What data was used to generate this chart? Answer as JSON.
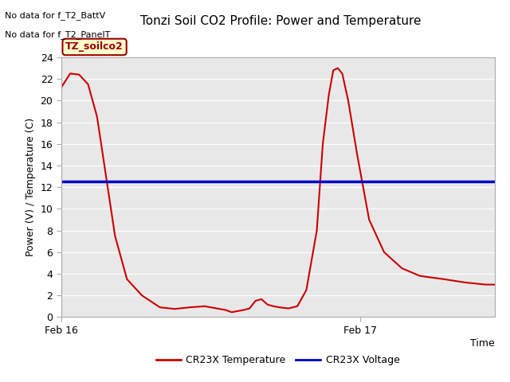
{
  "title": "Tonzi Soil CO2 Profile: Power and Temperature",
  "ylabel": "Power (V) / Temperature (C)",
  "xlabel": "Time",
  "ylim": [
    0,
    24
  ],
  "no_data_lines": [
    "No data for f_T2_BattV",
    "No data for f_T2_PanelT"
  ],
  "legend_box_label": "TZ_soilco2",
  "legend_box_facecolor": "#ffffcc",
  "legend_box_edgecolor": "#990000",
  "voltage_value": 12.5,
  "voltage_color": "#0000cc",
  "temp_color": "#cc0000",
  "background_color": "#e8e8e8",
  "legend_entries": [
    "CR23X Temperature",
    "CR23X Voltage"
  ],
  "legend_colors": [
    "#cc0000",
    "#0000cc"
  ],
  "xlim": [
    0.0,
    1.45
  ],
  "x_ticks": [
    0.0,
    1.0
  ],
  "x_tick_labels": [
    "Feb 16",
    "Feb 17"
  ],
  "temp_x": [
    0.0,
    0.03,
    0.06,
    0.09,
    0.12,
    0.15,
    0.18,
    0.22,
    0.27,
    0.33,
    0.38,
    0.43,
    0.48,
    0.52,
    0.55,
    0.57,
    0.59,
    0.61,
    0.63,
    0.65,
    0.67,
    0.69,
    0.71,
    0.73,
    0.76,
    0.79,
    0.82,
    0.855,
    0.875,
    0.895,
    0.91,
    0.925,
    0.94,
    0.96,
    0.99,
    1.03,
    1.08,
    1.14,
    1.2,
    1.28,
    1.35,
    1.42,
    1.45
  ],
  "temp_y": [
    21.2,
    22.5,
    22.4,
    21.5,
    18.5,
    13.0,
    7.5,
    3.5,
    2.0,
    0.9,
    0.75,
    0.9,
    1.0,
    0.8,
    0.65,
    0.45,
    0.55,
    0.65,
    0.8,
    1.5,
    1.65,
    1.15,
    1.0,
    0.9,
    0.8,
    1.0,
    2.5,
    8.0,
    16.0,
    20.5,
    22.8,
    23.0,
    22.5,
    20.0,
    15.0,
    9.0,
    6.0,
    4.5,
    3.8,
    3.5,
    3.2,
    3.0,
    3.0
  ]
}
